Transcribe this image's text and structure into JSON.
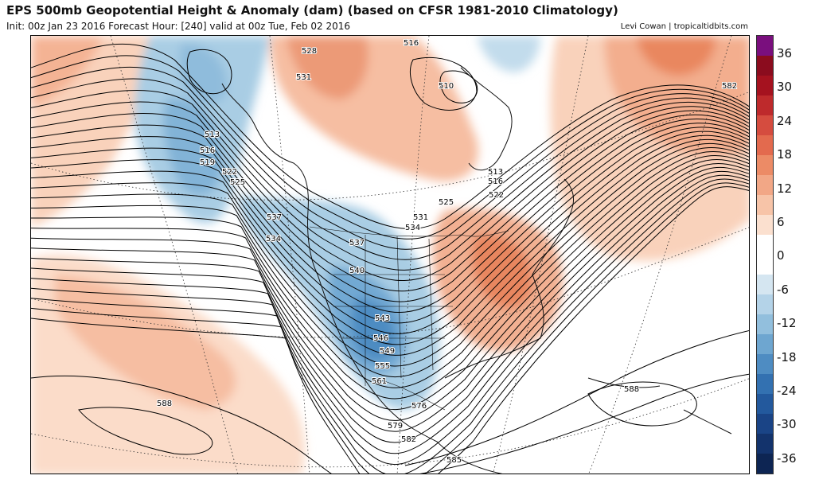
{
  "header": {
    "title": "EPS 500mb Geopotential Height & Anomaly (dam) (based on CFSR 1981-2010 Climatology)",
    "subtitle": "Init: 00z Jan 23 2016   Forecast Hour: [240]   valid at 00z Tue, Feb 02 2016",
    "credit": "Levi Cowan | tropicaltidbits.com"
  },
  "colorbar": {
    "labels": [
      "36",
      "30",
      "24",
      "18",
      "12",
      "6",
      "0",
      "-6",
      "-12",
      "-18",
      "-24",
      "-30",
      "-36"
    ],
    "colors": [
      "#7a0f7e",
      "#8b0c1e",
      "#a5121f",
      "#be2a2c",
      "#d54c3f",
      "#e36a4e",
      "#ec8b66",
      "#f2a786",
      "#f7c4a8",
      "#fbe0cf",
      "#ffffff",
      "#ffffff",
      "#d5e6f1",
      "#b4d3e8",
      "#92bfdd",
      "#6ea6d0",
      "#4e8cc2",
      "#3371b1",
      "#23599d",
      "#1a4486",
      "#13336c",
      "#0d2553"
    ]
  },
  "map": {
    "contour_labels": [
      "528",
      "516",
      "531",
      "510",
      "513",
      "516",
      "519",
      "522",
      "525",
      "513",
      "516",
      "522",
      "525",
      "531",
      "534",
      "537",
      "534",
      "537",
      "540",
      "543",
      "546",
      "549",
      "555",
      "561",
      "576",
      "579",
      "582",
      "585",
      "588",
      "588",
      "582"
    ]
  }
}
